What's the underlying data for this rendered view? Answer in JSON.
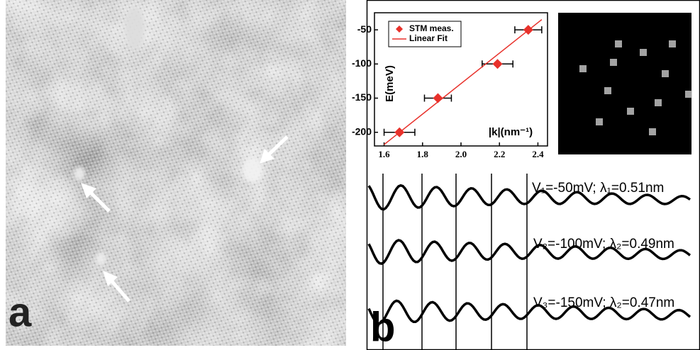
{
  "panel_a": {
    "label": "a"
  },
  "panel_b": {
    "label": "b",
    "profile_labels": [
      "V₁=-50mV; λ₁=0.51nm",
      "V₂=-100mV; λ₂=0.49nm",
      "V₃=-150mV; λ₂=0.47nm"
    ]
  },
  "chart_data": {
    "type": "scatter",
    "xlabel": "|k|(nm⁻¹)",
    "ylabel": "E(meV)",
    "xlim": [
      1.55,
      2.45
    ],
    "ylim": [
      -220,
      -25
    ],
    "xticks": [
      1.6,
      1.8,
      {
        "value": 2,
        "label": "2.0"
      },
      2.2,
      2.4
    ],
    "yticks": [
      -50,
      -100,
      -150,
      -200
    ],
    "series": [
      {
        "name": "STM meas.",
        "color": "#e8312b",
        "marker": "diamond",
        "x": [
          1.68,
          1.88,
          2.19,
          2.35
        ],
        "values": [
          -200,
          -150,
          -100,
          -50
        ],
        "xerr": [
          0.08,
          0.07,
          0.08,
          0.07
        ]
      },
      {
        "name": "Linear Fit",
        "color": "#e8312b",
        "marker": "line",
        "x": [
          1.6,
          2.42
        ],
        "values": [
          -218,
          -35
        ]
      }
    ]
  }
}
